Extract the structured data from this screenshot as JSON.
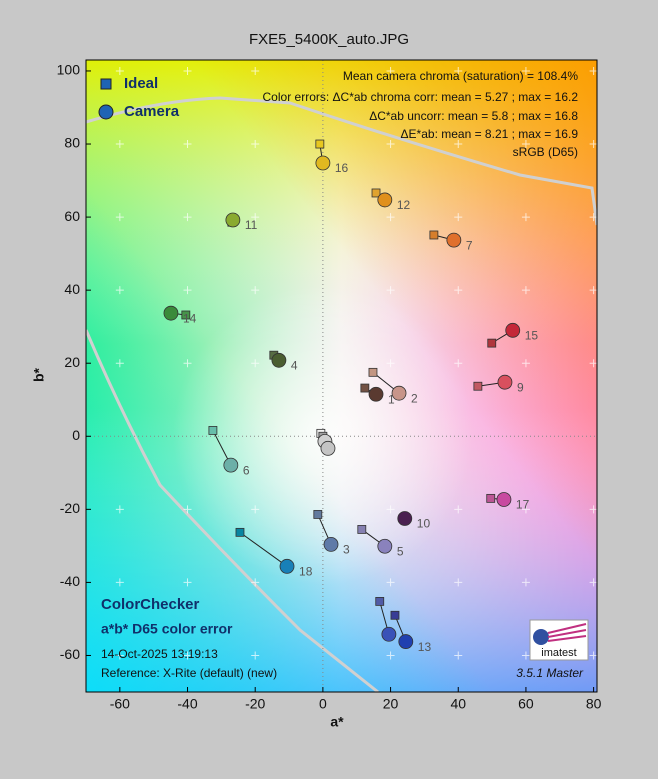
{
  "chart_data": {
    "type": "scatter",
    "title": "FXE5_5400K_auto.JPG",
    "xlabel": "a*",
    "ylabel": "b*",
    "xlim": [
      -70,
      81
    ],
    "ylim": [
      -70,
      103
    ],
    "xticks": [
      -60,
      -40,
      -20,
      0,
      20,
      40,
      60,
      80
    ],
    "yticks": [
      -60,
      -40,
      -20,
      0,
      20,
      40,
      60,
      80,
      100
    ],
    "grid": true,
    "legend": "upper left",
    "labels": [
      "1",
      "2",
      "3",
      "4",
      "5",
      "6",
      "7",
      null,
      "9",
      "10",
      "11",
      "12",
      "13",
      "14",
      "15",
      "16",
      "17",
      "18",
      null,
      null
    ],
    "series": [
      {
        "name": "Ideal",
        "marker": "square",
        "color": "#1f64b4",
        "x": [
          12.4,
          14.8,
          -1.5,
          -14.5,
          11.5,
          -32.5,
          32.8,
          16.8,
          45.8,
          23.9,
          -26.9,
          15.7,
          21.3,
          -40.5,
          49.9,
          -0.9,
          49.6,
          -24.5,
          -0.6,
          0
        ],
        "y": [
          13.2,
          17.5,
          -21.4,
          22.2,
          -25.5,
          1.6,
          55.1,
          -45.2,
          13.7,
          -22.5,
          58.6,
          66.6,
          -49,
          33.2,
          25.5,
          80,
          -17,
          -26.3,
          0.8,
          0
        ],
        "point_colors": [
          "#735244",
          "#c29682",
          "#627a9d",
          "#576c43",
          "#8580b1",
          "#67bdaa",
          "#d67e2c",
          "#505ba6",
          "#c15a63",
          "#5e3c6c",
          "#9dbc40",
          "#e0a32e",
          "#383d96",
          "#469449",
          "#af363c",
          "#e7c71f",
          "#bb5695",
          "#0885a1",
          "#f3f3f2",
          "#a0a0a0"
        ]
      },
      {
        "name": "Camera",
        "marker": "circle",
        "color": "#1f64b4",
        "x": [
          15.7,
          22.5,
          2.4,
          -13,
          18.3,
          -27.2,
          38.7,
          19.5,
          53.8,
          24.2,
          -26.6,
          18.3,
          24.5,
          -44.9,
          56.1,
          0,
          53.5,
          -10.6,
          0.6,
          1.5
        ],
        "y": [
          11.5,
          11.8,
          -29.6,
          20.8,
          -30.1,
          -7.9,
          53.7,
          -54.2,
          14.8,
          -22.5,
          59.2,
          64.7,
          -56.2,
          33.7,
          29,
          74.8,
          -17.3,
          -35.6,
          -1.4,
          -3.3
        ],
        "point_colors": [
          "#5a3a30",
          "#c8958a",
          "#5f7aa8",
          "#4a5e30",
          "#8a82bd",
          "#6cb0a8",
          "#e0702c",
          "#3a52b8",
          "#d8505e",
          "#4a2050",
          "#8aaa30",
          "#e0901c",
          "#2040b0",
          "#3a8a3a",
          "#c42838",
          "#e0b820",
          "#c84aa0",
          "#1880b8",
          "#d0d0d0",
          "#c4c4c4"
        ]
      }
    ],
    "annotations": [
      "Mean camera chroma (saturation) = 108.4%",
      "Color errors: ΔC*ab chroma corr:  mean = 5.27 ;  max = 16.2",
      "ΔC*ab uncorr:  mean = 5.8 ;  max = 16.8",
      "ΔE*ab:  mean = 8.21 ;  max = 16.9",
      "sRGB (D65)"
    ],
    "footer": {
      "name": "ColorChecker",
      "subtitle": "a*b* D65 color error",
      "date": "14-Oct-2025 13:19:13",
      "reference": "Reference: X-Rite (default) (new)",
      "version": "3.5.1  Master",
      "logo": "imatest"
    }
  }
}
